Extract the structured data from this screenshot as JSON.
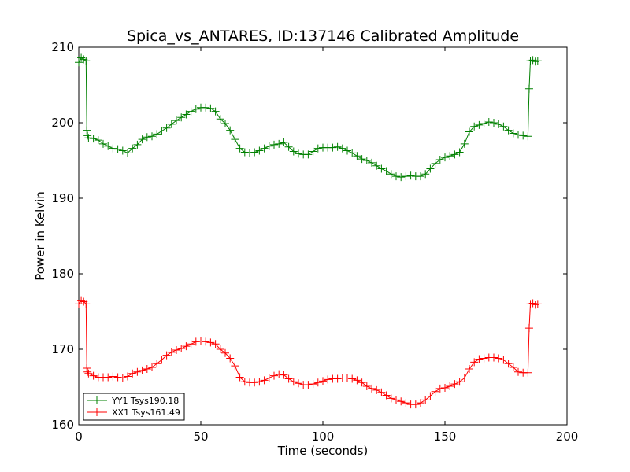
{
  "chart_data": {
    "type": "line",
    "title": "Spica_vs_ANTARES, ID:137146 Calibrated Amplitude",
    "xlabel": "Time (seconds)",
    "ylabel": "Power in Kelvin",
    "xlim": [
      0,
      200
    ],
    "ylim": [
      160,
      210
    ],
    "xticks": [
      "0",
      "50",
      "100",
      "150",
      "200"
    ],
    "yticks": [
      "160",
      "170",
      "180",
      "190",
      "200",
      "210"
    ],
    "grid": false,
    "legend_position": "lower-left",
    "marker": "+",
    "series": [
      {
        "name": "YY1 Tsys190.18",
        "color": "#008000",
        "x": [
          0,
          1,
          2,
          3,
          3.3,
          3.6,
          4,
          6,
          8,
          10,
          12,
          14,
          16,
          18,
          20,
          22,
          24,
          26,
          28,
          30,
          32,
          34,
          36,
          38,
          40,
          42,
          44,
          46,
          48,
          50,
          52,
          54,
          56,
          58,
          60,
          62,
          64,
          66,
          68,
          70,
          72,
          74,
          76,
          78,
          80,
          82,
          84,
          86,
          88,
          90,
          92,
          94,
          96,
          98,
          100,
          102,
          104,
          106,
          108,
          110,
          112,
          114,
          116,
          118,
          120,
          122,
          124,
          126,
          128,
          130,
          132,
          134,
          136,
          138,
          140,
          142,
          144,
          146,
          148,
          150,
          152,
          154,
          156,
          158,
          160,
          162,
          164,
          166,
          168,
          170,
          172,
          174,
          176,
          178,
          180,
          182,
          184,
          184.5,
          185,
          186,
          187,
          188
        ],
        "y": [
          208.0,
          208.6,
          208.4,
          208.2,
          199.0,
          198.3,
          198.0,
          197.9,
          197.7,
          197.2,
          196.9,
          196.6,
          196.5,
          196.3,
          196.0,
          196.6,
          197.1,
          197.8,
          198.1,
          198.2,
          198.5,
          198.9,
          199.3,
          199.8,
          200.3,
          200.7,
          201.1,
          201.5,
          201.8,
          202.0,
          202.0,
          201.9,
          201.5,
          200.5,
          199.9,
          199.0,
          197.8,
          196.6,
          196.1,
          196.0,
          196.1,
          196.3,
          196.6,
          196.9,
          197.1,
          197.2,
          197.4,
          196.8,
          196.2,
          195.9,
          195.8,
          195.8,
          196.2,
          196.6,
          196.7,
          196.7,
          196.7,
          196.8,
          196.6,
          196.3,
          196.0,
          195.6,
          195.2,
          195.0,
          194.7,
          194.3,
          193.9,
          193.6,
          193.2,
          192.9,
          192.8,
          192.9,
          193.0,
          192.9,
          192.9,
          193.2,
          193.9,
          194.6,
          195.1,
          195.4,
          195.6,
          195.8,
          196.1,
          197.2,
          198.8,
          199.5,
          199.7,
          199.9,
          200.1,
          200.0,
          199.8,
          199.5,
          199.0,
          198.6,
          198.4,
          198.3,
          198.2,
          204.5,
          208.2,
          208.3,
          208.1,
          208.2
        ]
      },
      {
        "name": "XX1 Tsys161.49",
        "color": "#ff0000",
        "x": [
          0,
          1,
          2,
          3,
          3.3,
          3.6,
          4,
          6,
          8,
          10,
          12,
          14,
          16,
          18,
          20,
          22,
          24,
          26,
          28,
          30,
          32,
          34,
          36,
          38,
          40,
          42,
          44,
          46,
          48,
          50,
          52,
          54,
          56,
          58,
          60,
          62,
          64,
          66,
          68,
          70,
          72,
          74,
          76,
          78,
          80,
          82,
          84,
          86,
          88,
          90,
          92,
          94,
          96,
          98,
          100,
          102,
          104,
          106,
          108,
          110,
          112,
          114,
          116,
          118,
          120,
          122,
          124,
          126,
          128,
          130,
          132,
          134,
          136,
          138,
          140,
          142,
          144,
          146,
          148,
          150,
          152,
          154,
          156,
          158,
          160,
          162,
          164,
          166,
          168,
          170,
          172,
          174,
          176,
          178,
          180,
          182,
          184,
          184.5,
          185,
          186,
          187,
          188
        ],
        "y": [
          176.0,
          176.5,
          176.3,
          176.0,
          167.5,
          167.0,
          166.8,
          166.5,
          166.3,
          166.3,
          166.3,
          166.4,
          166.3,
          166.2,
          166.4,
          166.8,
          167.0,
          167.2,
          167.4,
          167.6,
          168.1,
          168.6,
          169.2,
          169.6,
          169.9,
          170.1,
          170.4,
          170.7,
          171.0,
          171.1,
          171.0,
          170.9,
          170.7,
          170.0,
          169.5,
          168.8,
          167.8,
          166.3,
          165.7,
          165.6,
          165.6,
          165.7,
          165.9,
          166.2,
          166.5,
          166.7,
          166.6,
          166.1,
          165.7,
          165.5,
          165.3,
          165.3,
          165.4,
          165.6,
          165.8,
          166.0,
          166.1,
          166.1,
          166.2,
          166.2,
          166.1,
          165.9,
          165.6,
          165.1,
          164.8,
          164.6,
          164.3,
          163.9,
          163.5,
          163.3,
          163.1,
          162.9,
          162.7,
          162.7,
          162.9,
          163.3,
          163.8,
          164.4,
          164.8,
          164.9,
          165.1,
          165.4,
          165.7,
          166.2,
          167.4,
          168.3,
          168.7,
          168.8,
          168.9,
          168.9,
          168.8,
          168.6,
          168.1,
          167.6,
          167.0,
          166.9,
          166.9,
          172.8,
          176.0,
          176.1,
          175.9,
          176.0
        ]
      }
    ]
  }
}
